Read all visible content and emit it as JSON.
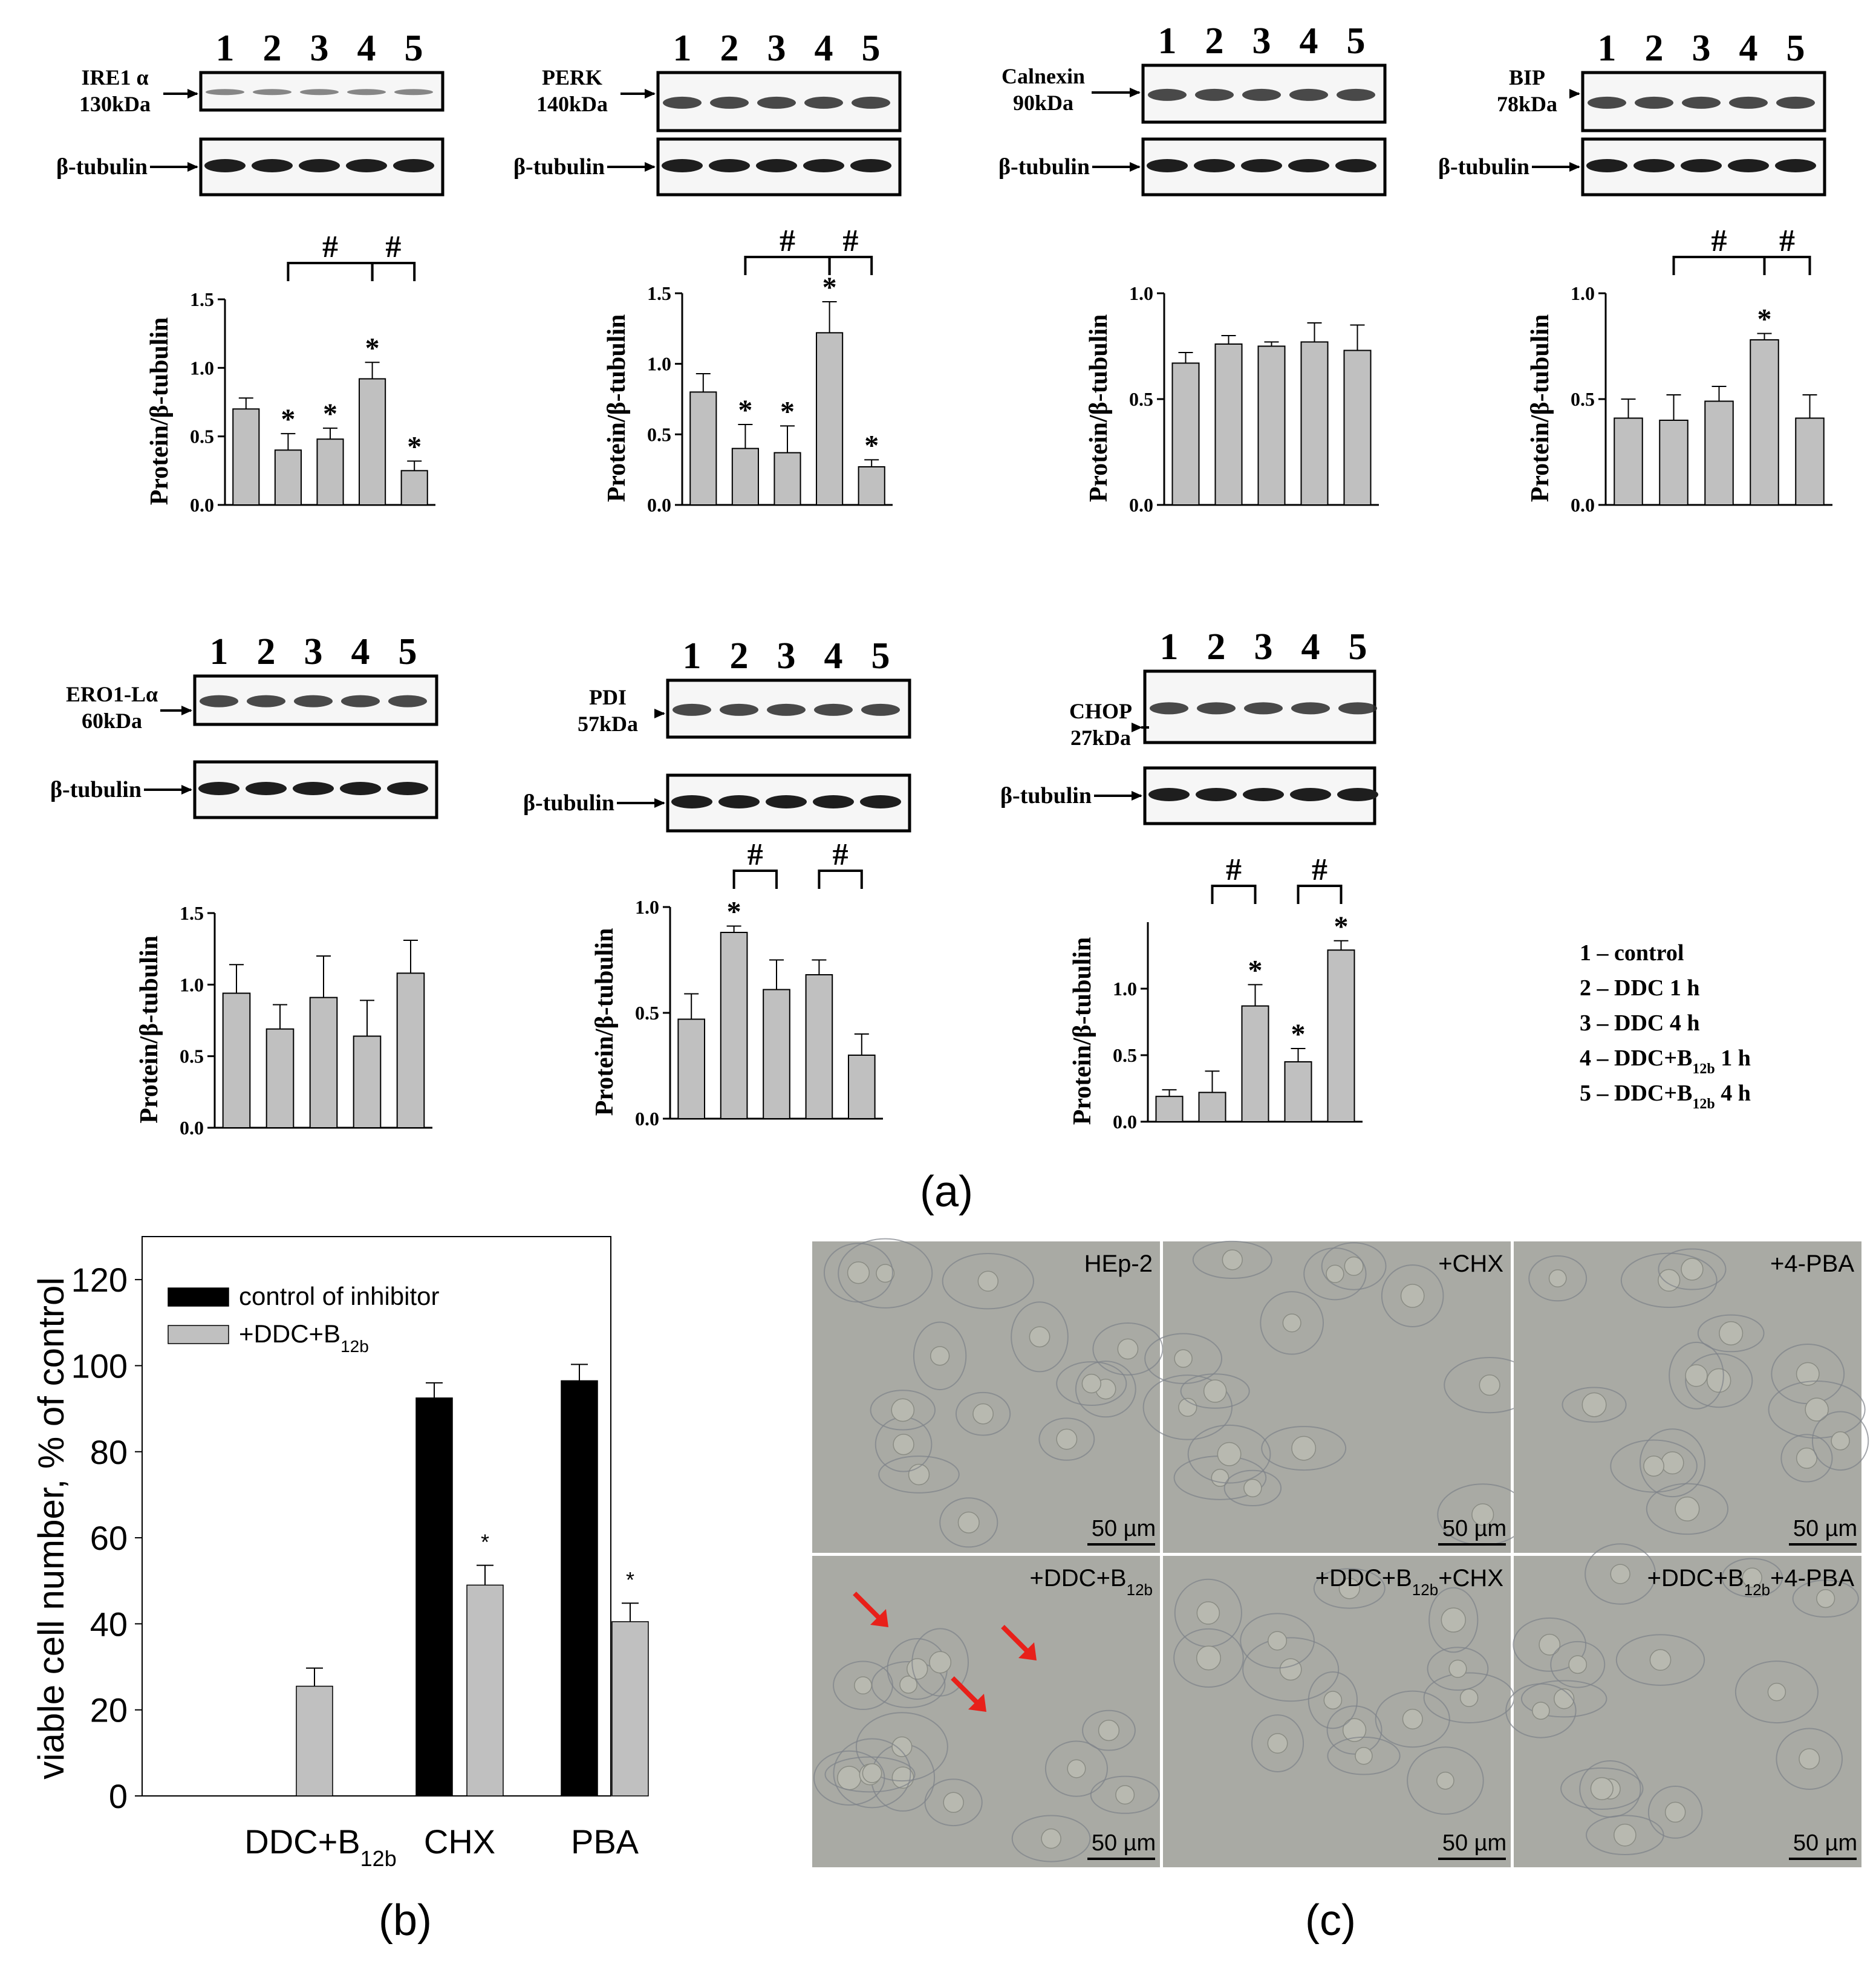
{
  "panel_a": {
    "caption": "(a)",
    "legend": [
      {
        "num": "1",
        "text": "control"
      },
      {
        "num": "2",
        "text": "DDC 1 h"
      },
      {
        "num": "3",
        "text": "DDC 4 h"
      },
      {
        "num": "4",
        "text": "DDC+B",
        "sub": "12b",
        "tail": " 1 h"
      },
      {
        "num": "5",
        "text": "DDC+B",
        "sub": "12b",
        "tail": " 4 h"
      }
    ],
    "lane_labels": [
      "1",
      "2",
      "3",
      "4",
      "5"
    ],
    "loading_control": "β-tubulin",
    "blots": [
      {
        "name": "IRE1 α",
        "size": "130kDa",
        "ylabel": "Protein/β-tubulin",
        "ymax": 1.5,
        "ticks": [
          "0.0",
          "0.5",
          "1.0",
          "1.5"
        ],
        "values": [
          0.7,
          0.4,
          0.48,
          0.92,
          0.25
        ],
        "errors": [
          0.08,
          0.12,
          0.08,
          0.12,
          0.07
        ],
        "stars": [
          false,
          true,
          true,
          true,
          true
        ],
        "brackets": [
          {
            "from": 2,
            "to": 4,
            "label": "#"
          },
          {
            "from": 4,
            "to": 5,
            "label": "#"
          }
        ]
      },
      {
        "name": "PERK",
        "size": "140kDa",
        "ylabel": "Protein/β-tubulin",
        "ymax": 1.5,
        "ticks": [
          "0.0",
          "0.5",
          "1.0",
          "1.5"
        ],
        "values": [
          0.8,
          0.4,
          0.37,
          1.22,
          0.27
        ],
        "errors": [
          0.13,
          0.17,
          0.19,
          0.22,
          0.05
        ],
        "stars": [
          false,
          true,
          true,
          true,
          true
        ],
        "brackets": [
          {
            "from": 2,
            "to": 4,
            "label": "#"
          },
          {
            "from": 4,
            "to": 5,
            "label": "#"
          }
        ]
      },
      {
        "name": "Calnexin",
        "size": "90kDa",
        "ylabel": "Protein/β-tubulin",
        "ymax": 1.0,
        "ticks": [
          "0.0",
          "0.5",
          "1.0"
        ],
        "values": [
          0.67,
          0.76,
          0.75,
          0.77,
          0.73
        ],
        "errors": [
          0.05,
          0.04,
          0.02,
          0.09,
          0.12
        ],
        "stars": [
          false,
          false,
          false,
          false,
          false
        ],
        "brackets": []
      },
      {
        "name": "BIP",
        "size": "78kDa",
        "ylabel": "Protein/β-tubulin",
        "ymax": 1.0,
        "ticks": [
          "0.0",
          "0.5",
          "1.0"
        ],
        "values": [
          0.41,
          0.4,
          0.49,
          0.78,
          0.41
        ],
        "errors": [
          0.09,
          0.12,
          0.07,
          0.03,
          0.11
        ],
        "stars": [
          false,
          false,
          false,
          true,
          false
        ],
        "brackets": [
          {
            "from": 2,
            "to": 4,
            "label": "#"
          },
          {
            "from": 4,
            "to": 5,
            "label": "#"
          }
        ]
      },
      {
        "name": "ERO1-Lα",
        "size": "60kDa",
        "ylabel": "Protein/β-tubulin",
        "ymax": 1.5,
        "ticks": [
          "0.0",
          "0.5",
          "1.0",
          "1.5"
        ],
        "values": [
          0.94,
          0.69,
          0.91,
          0.64,
          1.08
        ],
        "errors": [
          0.2,
          0.17,
          0.29,
          0.25,
          0.23
        ],
        "stars": [
          false,
          false,
          false,
          false,
          false
        ],
        "brackets": []
      },
      {
        "name": "PDI",
        "size": "57kDa",
        "ylabel": "Protein/β-tubulin",
        "ymax": 1.0,
        "ticks": [
          "0.0",
          "0.5",
          "1.0"
        ],
        "values": [
          0.47,
          0.88,
          0.61,
          0.68,
          0.3
        ],
        "errors": [
          0.12,
          0.03,
          0.14,
          0.07,
          0.1
        ],
        "stars": [
          false,
          true,
          false,
          false,
          false
        ],
        "brackets": [
          {
            "from": 2,
            "to": 3,
            "label": "#"
          },
          {
            "from": 4,
            "to": 5,
            "label": "#"
          }
        ]
      },
      {
        "name": "CHOP",
        "size": "27kDa",
        "ylabel": "Protein/β-tubulin",
        "ymax": 1.5,
        "ticks": [
          "0.0",
          "0.5",
          "1.0"
        ],
        "values": [
          0.19,
          0.22,
          0.87,
          0.45,
          1.29
        ],
        "errors": [
          0.05,
          0.16,
          0.16,
          0.1,
          0.07
        ],
        "stars": [
          false,
          false,
          true,
          true,
          true
        ],
        "brackets": [
          {
            "from": 2,
            "to": 3,
            "label": "#"
          },
          {
            "from": 4,
            "to": 5,
            "label": "#"
          }
        ]
      }
    ]
  },
  "chart_data": {
    "type": "bar",
    "categories": [
      "DDC+B12b",
      "CHX",
      "PBA"
    ],
    "category_labels": [
      {
        "text": "DDC+B",
        "sub": "12b"
      },
      {
        "text": "CHX"
      },
      {
        "text": "PBA"
      }
    ],
    "series": [
      {
        "name": "control of inhibitor",
        "color": "#000000",
        "values": [
          null,
          92.5,
          96.5
        ],
        "errors": [
          null,
          3.5,
          3.8
        ]
      },
      {
        "name": "+DDC+B12b",
        "color": "#c0c0c0",
        "values": [
          25.5,
          49,
          40.5
        ],
        "errors": [
          4.2,
          4.6,
          4.3
        ]
      }
    ],
    "legend": [
      {
        "text": "control of inhibitor"
      },
      {
        "text": "+DDC+B",
        "sub": "12b"
      }
    ],
    "significance": [
      null,
      "*",
      "*"
    ],
    "ylabel": "viable cell number, % of control",
    "ylim": [
      0,
      130
    ],
    "yticks": [
      0,
      20,
      40,
      60,
      80,
      100,
      120
    ],
    "caption": "(b)"
  },
  "panel_c": {
    "caption": "(c)",
    "scale_bar": "50 µm",
    "labels": [
      {
        "text": "HEp-2"
      },
      {
        "text": "+CHX"
      },
      {
        "text": "+4-PBA"
      },
      {
        "text": "+DDC+B",
        "sub": "12b"
      },
      {
        "text": "+DDC+B",
        "sub": "12b",
        "tail": "+CHX"
      },
      {
        "text": "+DDC+B",
        "sub": "12b",
        "tail": "+4-PBA"
      }
    ]
  },
  "colors": {
    "bar_gray": "#c0c0c0",
    "bar_black": "#000000",
    "arrow_red": "#e8201a",
    "micro_bg": "#a9aaa4"
  }
}
